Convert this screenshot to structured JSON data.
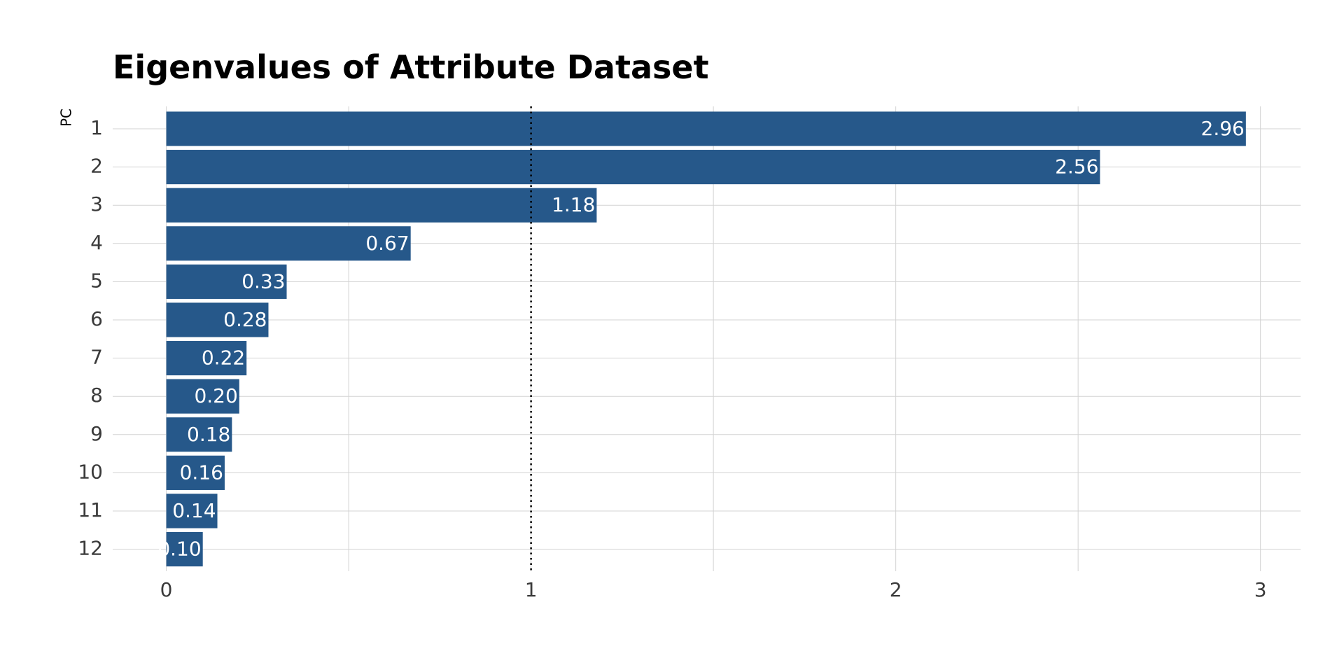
{
  "chart_data": {
    "type": "bar",
    "orientation": "horizontal",
    "title": "Eigenvalues of Attribute Dataset",
    "y_label": "PC",
    "categories": [
      "1",
      "2",
      "3",
      "4",
      "5",
      "6",
      "7",
      "8",
      "9",
      "10",
      "11",
      "12"
    ],
    "values": [
      2.96,
      2.56,
      1.18,
      0.67,
      0.33,
      0.28,
      0.22,
      0.2,
      0.18,
      0.16,
      0.14,
      0.1
    ],
    "value_labels": [
      "2.96",
      "2.56",
      "1.18",
      "0.67",
      "0.33",
      "0.28",
      "0.22",
      "0.20",
      "0.18",
      "0.16",
      "0.14",
      "0.10"
    ],
    "color": "#26588a",
    "xlim": [
      -0.147,
      3.11
    ],
    "xticks": [
      0,
      1,
      2,
      3
    ],
    "x_minor_grid": [
      0.5,
      1.5,
      2.5
    ],
    "reference_line": 1,
    "grid": true
  }
}
